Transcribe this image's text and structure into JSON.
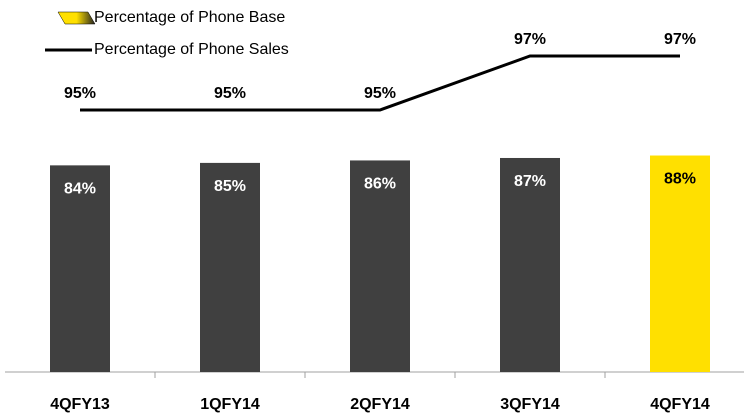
{
  "chart_data": {
    "type": "bar",
    "categories": [
      "4QFY13",
      "1QFY14",
      "2QFY14",
      "3QFY14",
      "4QFY14"
    ],
    "series": [
      {
        "name": "Percentage of Phone Base",
        "type": "bar",
        "colors": [
          "#404040",
          "#404040",
          "#404040",
          "#404040",
          "#ffe000"
        ],
        "values": [
          84,
          85,
          86,
          87,
          88
        ],
        "value_labels": [
          "84%",
          "85%",
          "86%",
          "87%",
          "88%"
        ]
      },
      {
        "name": "Percentage of Phone Sales",
        "type": "line",
        "color": "#000000",
        "values": [
          95,
          95,
          95,
          97,
          97
        ],
        "value_labels": [
          "95%",
          "95%",
          "95%",
          "97%",
          "97%"
        ]
      }
    ]
  }
}
